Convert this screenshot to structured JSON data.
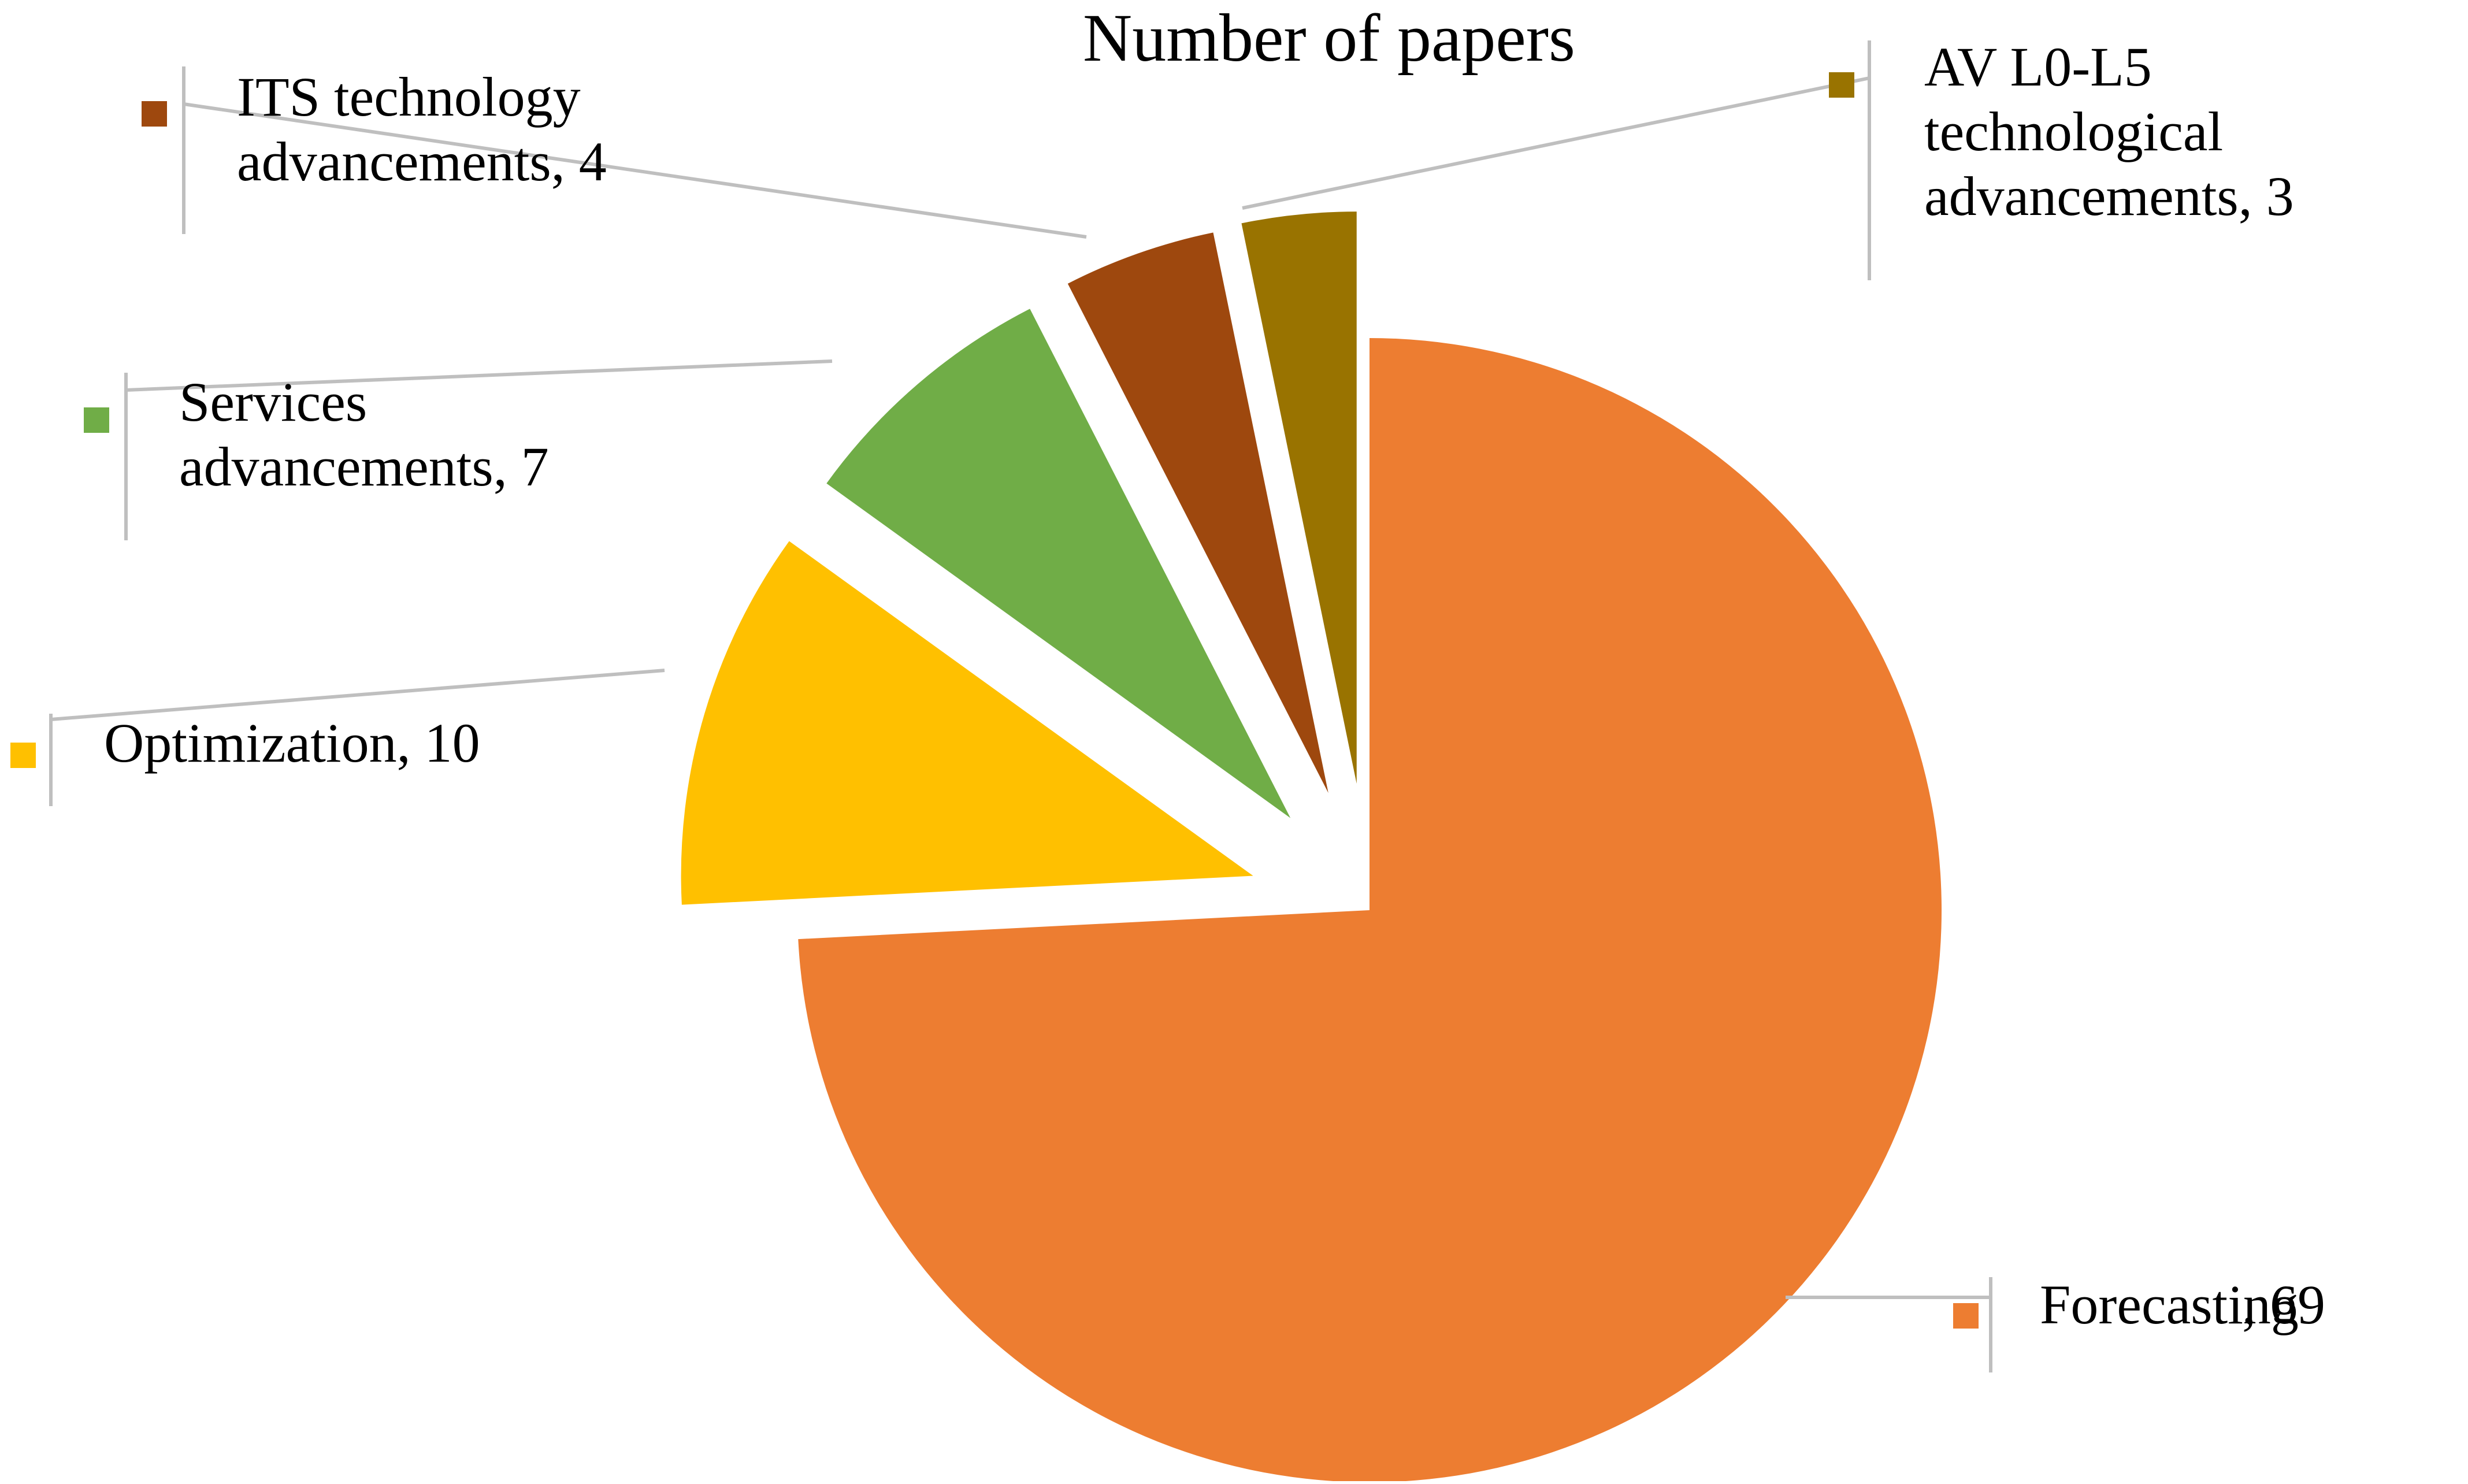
{
  "chart_data": {
    "type": "pie",
    "title": "Number of papers",
    "exploded": true,
    "start_angle": "12 o'clock, clockwise",
    "series": [
      {
        "values": [
          69,
          10,
          7,
          4,
          3
        ],
        "categories": [
          "Forecasting",
          "Optimization",
          "Services advancements",
          "ITS technology advancements",
          "AV L0-L5 technological advancements"
        ]
      }
    ],
    "slices": [
      {
        "label_lines": [
          "Forecasting",
          ", 69"
        ],
        "category": "Forecasting",
        "value": 69,
        "color": "#ED7D31"
      },
      {
        "label_lines": [
          "Optimization, 10"
        ],
        "category": "Optimization",
        "value": 10,
        "color": "#FFC000"
      },
      {
        "label_lines": [
          "Services",
          "advancements, 7"
        ],
        "category": "Services advancements",
        "value": 7,
        "color": "#70AD47"
      },
      {
        "label_lines": [
          "ITS technology",
          "advancements, 4"
        ],
        "category": "ITS technology advancements",
        "value": 4,
        "color": "#9E480E"
      },
      {
        "label_lines": [
          "AV L0-L5",
          "technological",
          "advancements, 3"
        ],
        "category": "AV L0-L5 technological advancements",
        "value": 3,
        "color": "#997300"
      }
    ],
    "legend": "none",
    "data_labels": "outside with leader lines"
  }
}
